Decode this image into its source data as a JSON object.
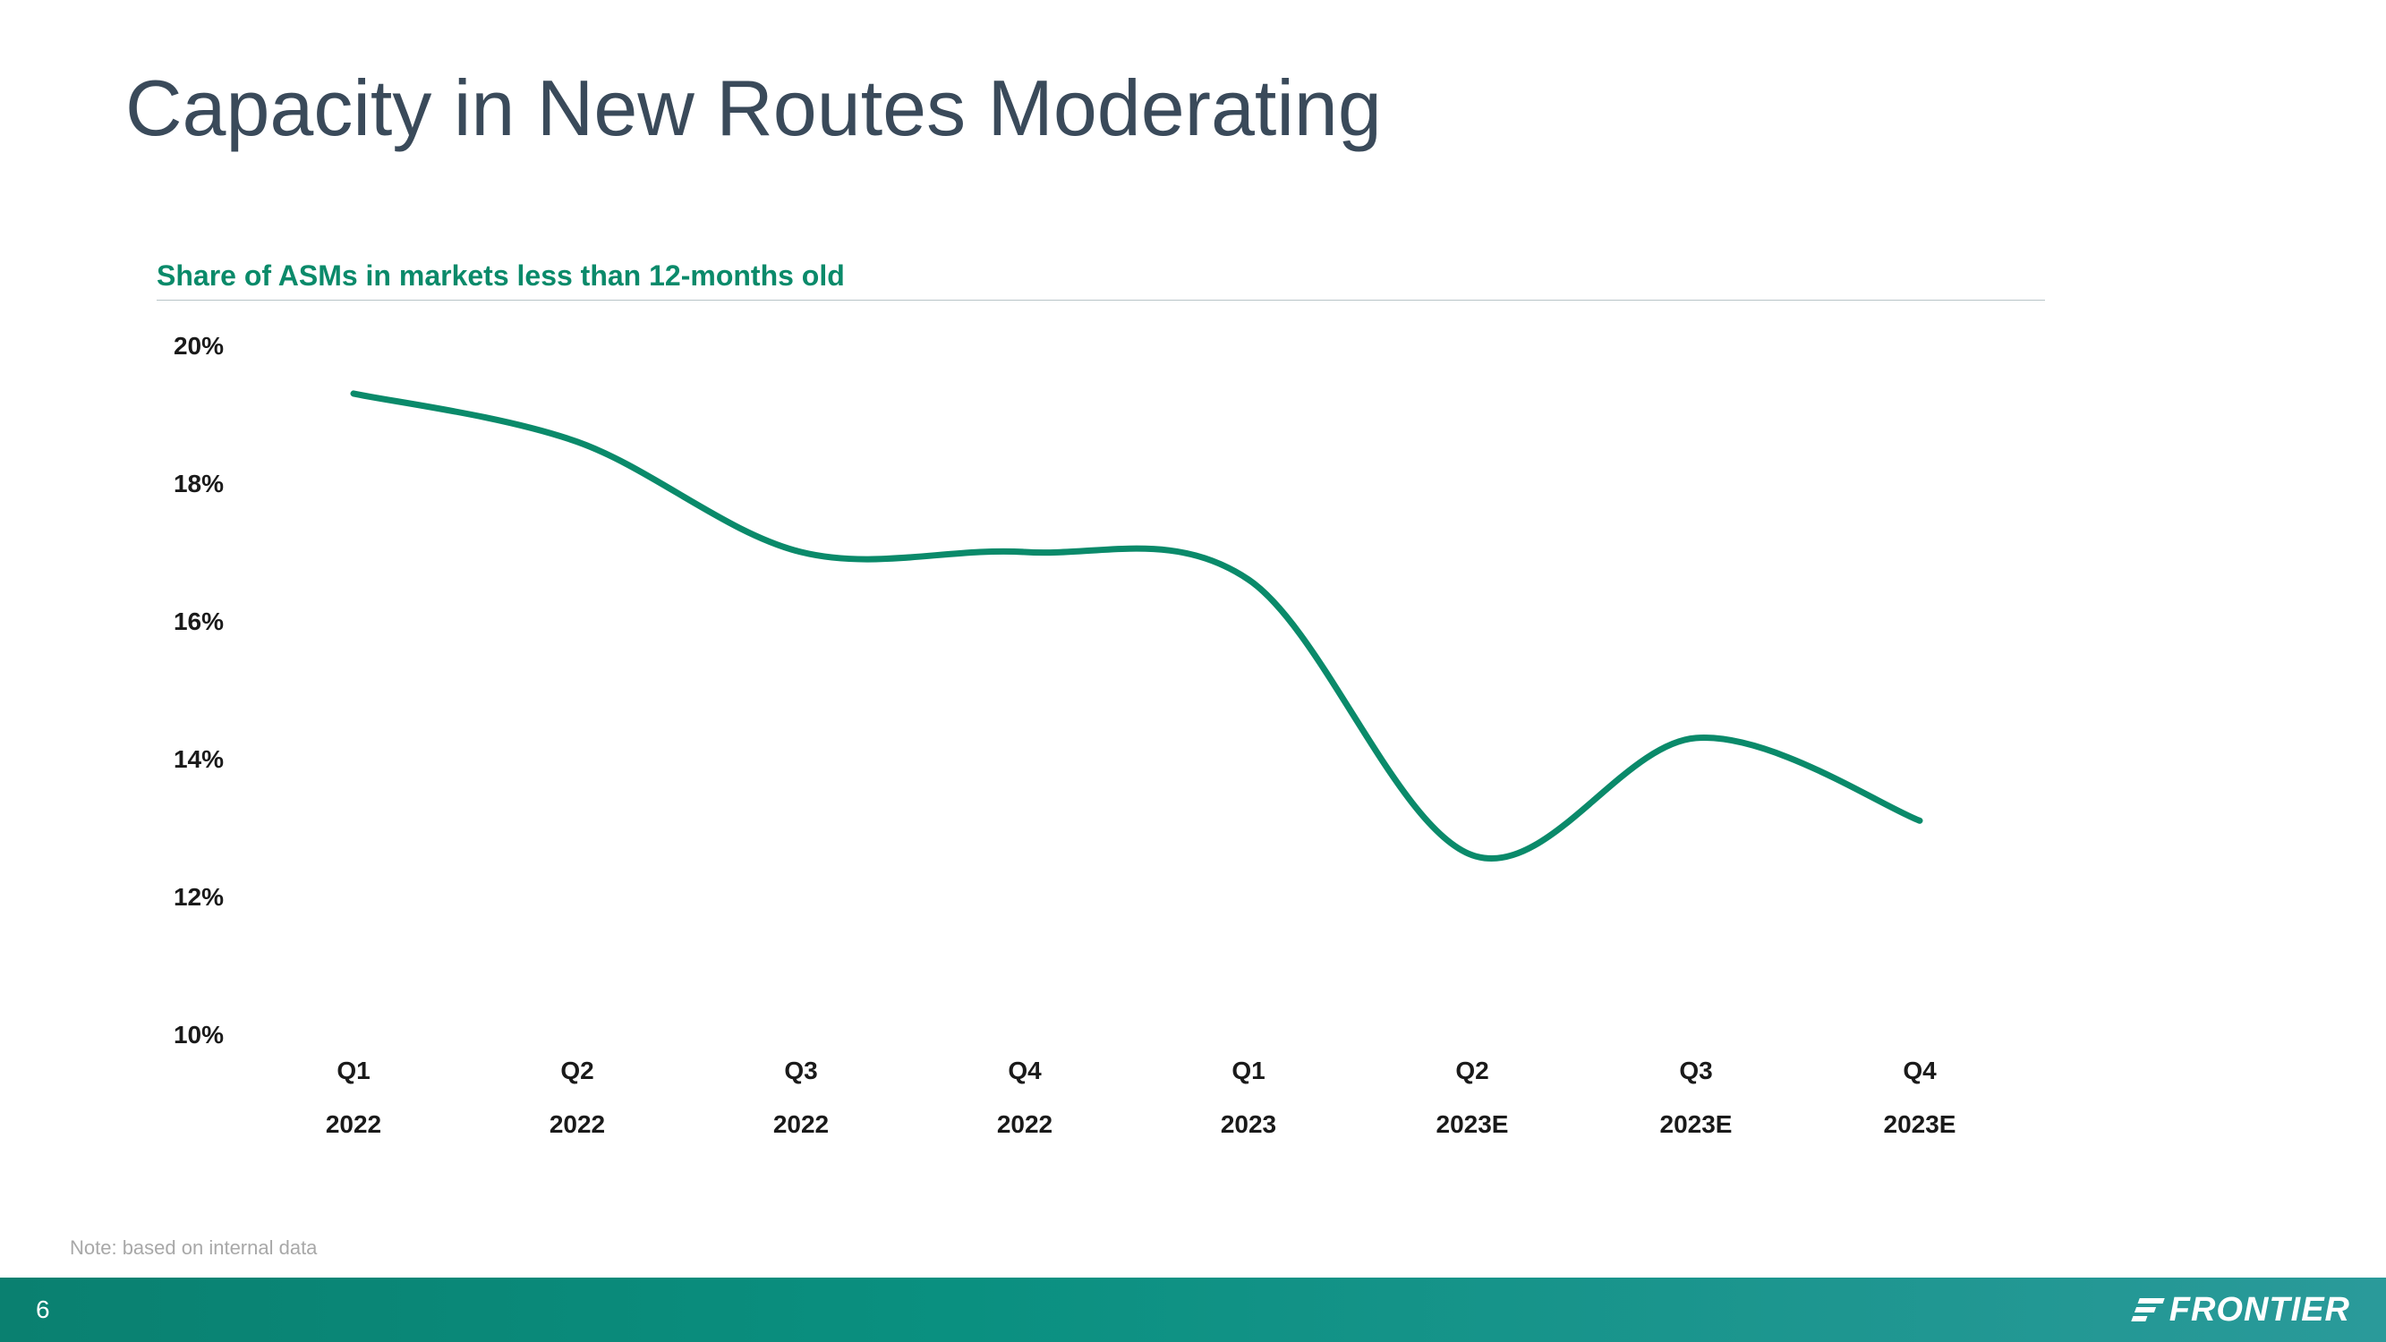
{
  "title": "Capacity in New Routes Moderating",
  "chart": {
    "type": "line",
    "subtitle": "Share of ASMs in markets less than 12-months old",
    "subtitle_color": "#0a8a6a",
    "subtitle_fontsize": 32,
    "line_color": "#0a8a6a",
    "line_width": 7,
    "background_color": "#ffffff",
    "ylim": [
      10,
      20
    ],
    "ytick_step": 2,
    "y_ticks": [
      "10%",
      "12%",
      "14%",
      "16%",
      "18%",
      "20%"
    ],
    "x_categories": [
      {
        "q": "Q1",
        "year": "2022"
      },
      {
        "q": "Q2",
        "year": "2022"
      },
      {
        "q": "Q3",
        "year": "2022"
      },
      {
        "q": "Q4",
        "year": "2022"
      },
      {
        "q": "Q1",
        "year": "2023"
      },
      {
        "q": "Q2",
        "year": "2023E"
      },
      {
        "q": "Q3",
        "year": "2023E"
      },
      {
        "q": "Q4",
        "year": "2023E"
      }
    ],
    "values": [
      19.3,
      18.6,
      17.0,
      17.0,
      16.6,
      12.6,
      14.3,
      13.1
    ],
    "label_fontsize": 28,
    "label_color": "#1a1a1a"
  },
  "note": "Note: based on internal data",
  "footer": {
    "page_number": "6",
    "brand": "FRONTIER",
    "bar_gradient_start": "#0a8070",
    "bar_gradient_end": "#2a9a9a"
  }
}
